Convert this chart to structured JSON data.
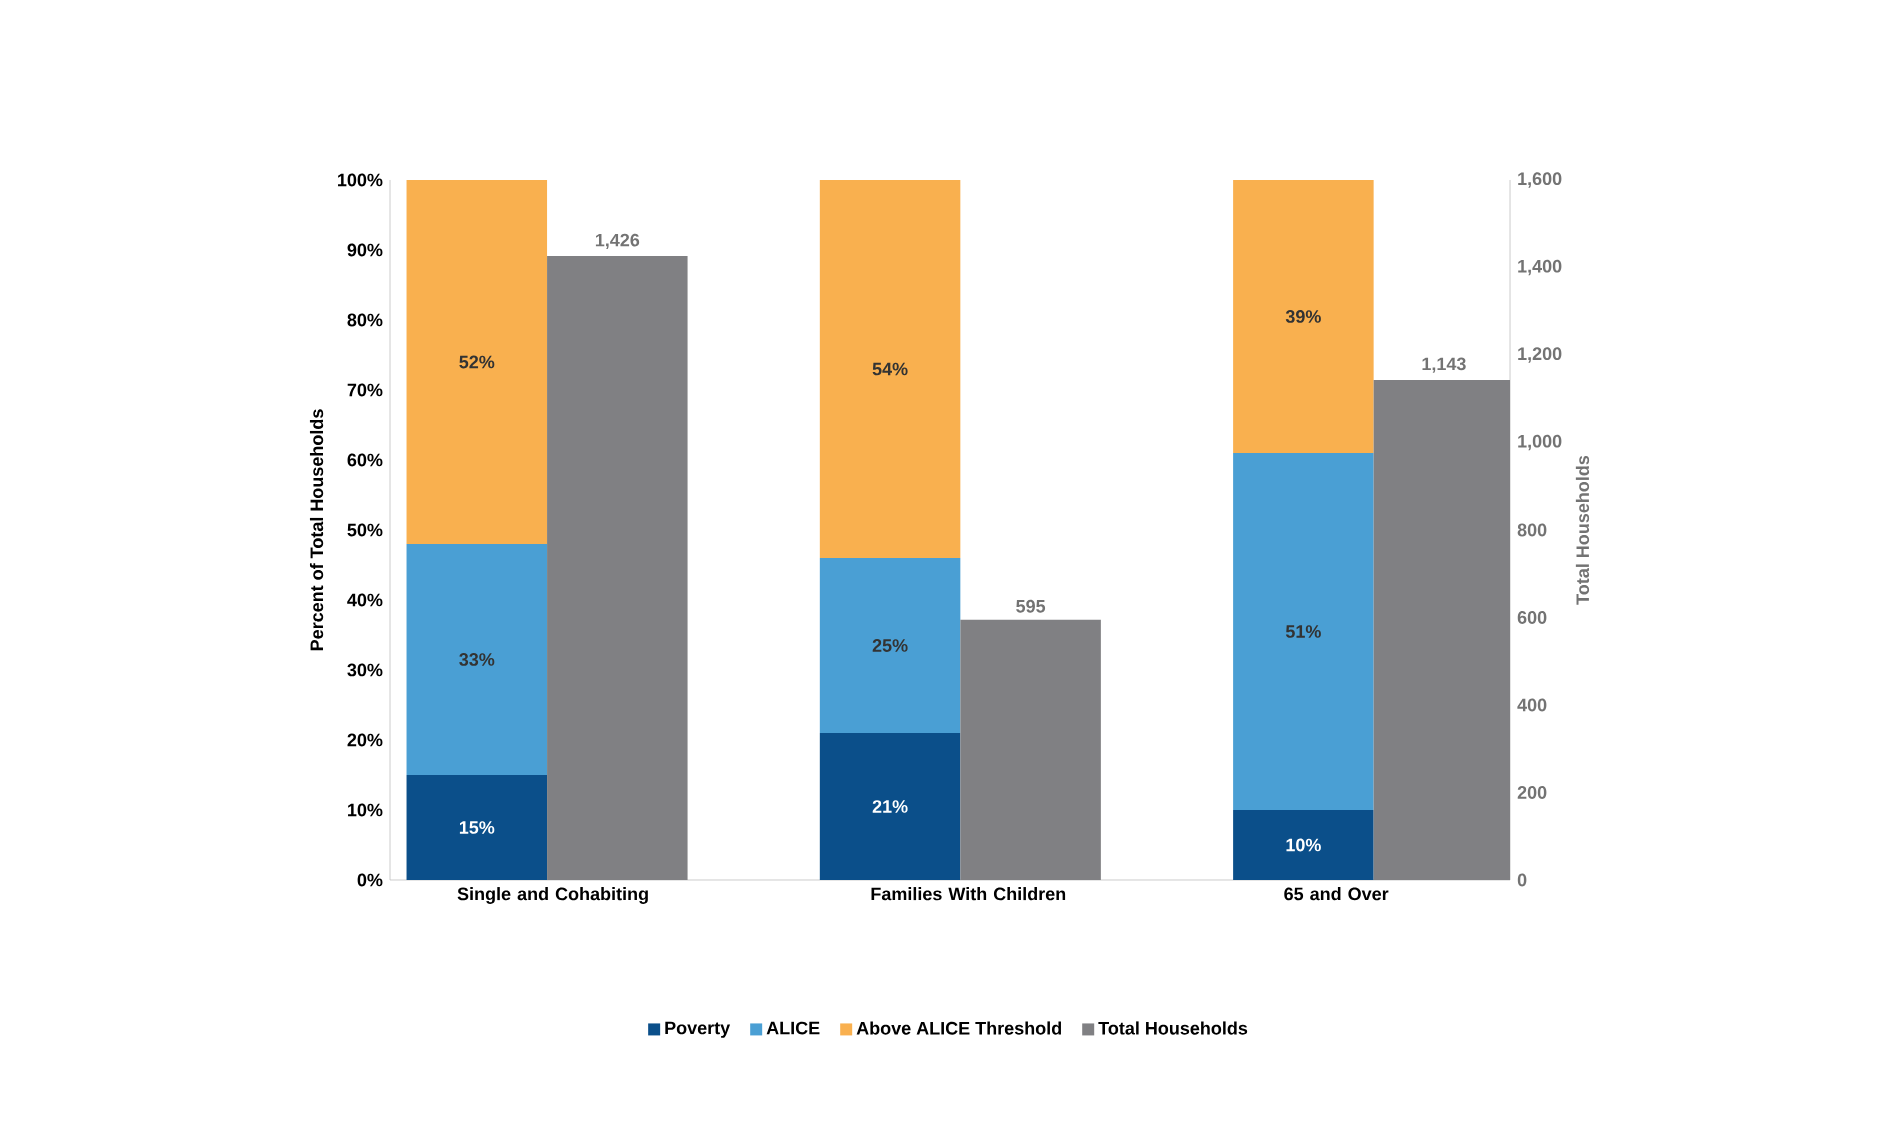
{
  "chart_data": {
    "type": "bar",
    "stacked": true,
    "categories": [
      "Single and Cohabiting",
      "Families With Children",
      "65 and Over"
    ],
    "series": [
      {
        "name": "Poverty",
        "color": "#0b4f8a",
        "values": [
          15,
          21,
          10
        ],
        "value_labels": [
          "15%",
          "21%",
          "10%"
        ]
      },
      {
        "name": "ALICE",
        "color": "#4a9fd4",
        "values": [
          33,
          25,
          51
        ],
        "value_labels": [
          "33%",
          "25%",
          "51%"
        ]
      },
      {
        "name": "Above ALICE Threshold",
        "color": "#f9b04f",
        "values": [
          52,
          54,
          39
        ],
        "value_labels": [
          "52%",
          "54%",
          "39%"
        ]
      },
      {
        "name": "Total Households",
        "color": "#808083",
        "axis": "y2",
        "values": [
          1426,
          595,
          1143
        ],
        "value_labels": [
          "1,426",
          "595",
          "1,143"
        ]
      }
    ],
    "ylabel": "Percent of Total Households",
    "y2label": "Total Households",
    "ylim": [
      0,
      100
    ],
    "yticks": [
      {
        "value": 0,
        "label": "0%"
      },
      {
        "value": 10,
        "label": "10%"
      },
      {
        "value": 20,
        "label": "20%"
      },
      {
        "value": 30,
        "label": "30%"
      },
      {
        "value": 40,
        "label": "40%"
      },
      {
        "value": 50,
        "label": "50%"
      },
      {
        "value": 60,
        "label": "60%"
      },
      {
        "value": 70,
        "label": "70%"
      },
      {
        "value": 80,
        "label": "80%"
      },
      {
        "value": 90,
        "label": "90%"
      },
      {
        "value": 100,
        "label": "100%"
      }
    ],
    "y2lim": [
      0,
      1600
    ],
    "y2ticks": [
      0,
      200,
      400,
      600,
      800,
      {
        "value": 1000,
        "label": "1,000"
      },
      {
        "value": 1200,
        "label": "1,200"
      },
      {
        "value": 1400,
        "label": "1,400"
      },
      {
        "value": 1600,
        "label": "1,600"
      }
    ],
    "legend": "bottom",
    "grid": false
  }
}
